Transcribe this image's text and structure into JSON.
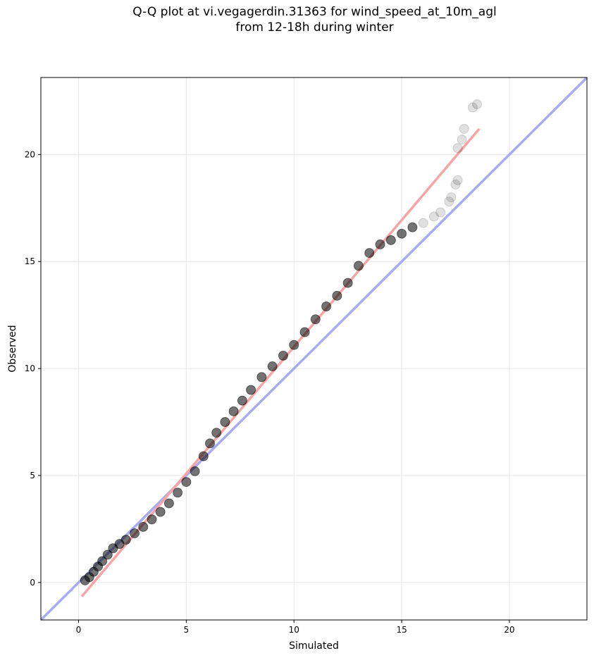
{
  "chart_data": {
    "type": "scatter",
    "title_line1": "Q-Q plot at vi.vegagerdin.31363 for wind_speed_at_10m_agl",
    "title_line2": "from 12-18h during winter",
    "xlabel": "Simulated",
    "ylabel": "Observed",
    "xlim": [
      -1.75,
      23.6
    ],
    "ylim": [
      -1.75,
      23.6
    ],
    "xticks": [
      0,
      5,
      10,
      15,
      20
    ],
    "yticks": [
      0,
      5,
      10,
      15,
      20
    ],
    "grid": true,
    "reference_line": {
      "name": "1:1 line",
      "color": "#aaaaf2",
      "slope": 1,
      "intercept": 0
    },
    "fit_line": {
      "color": "#f5a5a5",
      "x": [
        0.15,
        18.6
      ],
      "y": [
        -0.65,
        21.2
      ]
    },
    "point_color": "#000000",
    "quantiles": [
      [
        0.3,
        0.1
      ],
      [
        0.5,
        0.25
      ],
      [
        0.7,
        0.5
      ],
      [
        0.9,
        0.75
      ],
      [
        1.1,
        1.0
      ],
      [
        1.35,
        1.3
      ],
      [
        1.6,
        1.6
      ],
      [
        1.9,
        1.8
      ],
      [
        2.2,
        2.0
      ],
      [
        2.6,
        2.3
      ],
      [
        3.0,
        2.6
      ],
      [
        3.4,
        2.95
      ],
      [
        3.8,
        3.3
      ],
      [
        4.2,
        3.7
      ],
      [
        4.6,
        4.2
      ],
      [
        5.0,
        4.7
      ],
      [
        5.4,
        5.2
      ],
      [
        5.8,
        5.9
      ],
      [
        6.1,
        6.5
      ],
      [
        6.4,
        7.0
      ],
      [
        6.8,
        7.5
      ],
      [
        7.2,
        8.0
      ],
      [
        7.6,
        8.5
      ],
      [
        8.0,
        9.0
      ],
      [
        8.5,
        9.6
      ],
      [
        9.0,
        10.1
      ],
      [
        9.5,
        10.6
      ],
      [
        10.0,
        11.1
      ],
      [
        10.5,
        11.7
      ],
      [
        11.0,
        12.3
      ],
      [
        11.5,
        12.9
      ],
      [
        12.0,
        13.4
      ],
      [
        12.5,
        14.0
      ],
      [
        13.0,
        14.8
      ],
      [
        13.5,
        15.4
      ],
      [
        14.0,
        15.8
      ],
      [
        14.5,
        16.0
      ],
      [
        15.0,
        16.3
      ],
      [
        15.5,
        16.6
      ],
      [
        16.0,
        16.8
      ],
      [
        16.5,
        17.1
      ],
      [
        16.8,
        17.3
      ],
      [
        17.2,
        17.8
      ],
      [
        17.3,
        18.0
      ],
      [
        17.5,
        18.6
      ],
      [
        17.6,
        18.8
      ],
      [
        17.6,
        20.3
      ],
      [
        17.8,
        20.7
      ],
      [
        17.9,
        21.2
      ],
      [
        18.3,
        22.2
      ],
      [
        18.5,
        22.35
      ]
    ]
  }
}
